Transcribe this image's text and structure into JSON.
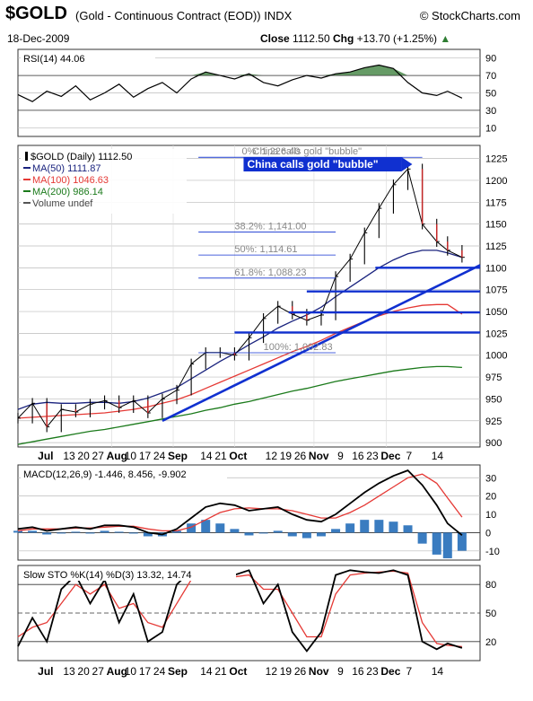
{
  "header": {
    "symbol": "$GOLD",
    "description": "(Gold - Continuous Contract (EOD))  INDX",
    "brand": "© StockCharts.com",
    "date": "18-Dec-2009",
    "close_label": "Close",
    "close_value": "1112.50",
    "chg_label": "Chg",
    "chg_value": "+13.70 (+1.25%)"
  },
  "colors": {
    "price_line": "#000000",
    "ma50": "#1a237e",
    "ma100": "#e53935",
    "ma200": "#1b7a1b",
    "trendline": "#1030d0",
    "macd_line": "#000000",
    "macd_signal": "#e53935",
    "histogram": "#3a7cc0",
    "rsi_fill": "#4b8a4b",
    "sto_k": "#000000",
    "sto_d": "#e53935"
  },
  "chart_data": [
    {
      "type": "line",
      "title": "RSI(14) 44.06",
      "ylim": [
        0,
        100
      ],
      "ticks": [
        "90",
        "70",
        "50",
        "30",
        "10"
      ],
      "reference_lines": [
        70,
        30
      ],
      "grid": true,
      "x": [
        0,
        4,
        8,
        12,
        16,
        20,
        24,
        28,
        32,
        36,
        40,
        44,
        48,
        52,
        56,
        60,
        64,
        68,
        72,
        76,
        80,
        84,
        88,
        92,
        96,
        100,
        104,
        108,
        112,
        116,
        119,
        123
      ],
      "values": [
        48,
        40,
        52,
        46,
        58,
        42,
        50,
        60,
        45,
        55,
        62,
        50,
        66,
        74,
        70,
        66,
        72,
        62,
        58,
        65,
        70,
        67,
        72,
        74,
        79,
        82,
        78,
        62,
        50,
        47,
        52,
        44
      ]
    },
    {
      "type": "line",
      "title": "$GOLD (Daily) 1112.50",
      "legend": [
        {
          "name": "$GOLD (Daily) 1112.50",
          "color": "#000000"
        },
        {
          "name": "MA(50) 1111.87",
          "color": "#1a237e"
        },
        {
          "name": "MA(100) 1046.63",
          "color": "#e53935"
        },
        {
          "name": "MA(200) 986.14",
          "color": "#1b7a1b"
        },
        {
          "name": "Volume undef",
          "color": "#555555"
        }
      ],
      "ylim": [
        895,
        1240
      ],
      "y_ticks": [
        1225,
        1200,
        1175,
        1150,
        1125,
        1100,
        1075,
        1050,
        1025,
        1000,
        975,
        950,
        925,
        900
      ],
      "x_ticks": [
        "Jul",
        "13",
        "20",
        "27",
        "Aug",
        "10",
        "17",
        "24",
        "Sep",
        "14",
        "21",
        "Oct",
        "12",
        "19",
        "26",
        "Nov",
        "9",
        "16",
        "23",
        "Dec",
        "7",
        "14"
      ],
      "x": [
        0,
        4,
        8,
        12,
        16,
        20,
        24,
        28,
        32,
        36,
        40,
        44,
        48,
        52,
        56,
        60,
        64,
        68,
        72,
        76,
        80,
        84,
        88,
        92,
        96,
        100,
        104,
        108,
        112,
        116,
        119,
        123
      ],
      "series": [
        {
          "name": "$GOLD",
          "values": [
            928,
            945,
            918,
            938,
            935,
            944,
            948,
            940,
            948,
            934,
            950,
            960,
            990,
            1003,
            1003,
            1000,
            1020,
            1042,
            1056,
            1047,
            1040,
            1046,
            1090,
            1110,
            1140,
            1168,
            1195,
            1213,
            1150,
            1130,
            1120,
            1112
          ]
        },
        {
          "name": "MA(50)",
          "values": [
            938,
            944,
            946,
            945,
            945,
            946,
            946,
            945,
            947,
            951,
            957,
            963,
            973,
            983,
            993,
            1002,
            1012,
            1021,
            1031,
            1039,
            1046,
            1055,
            1067,
            1078,
            1089,
            1100,
            1109,
            1116,
            1120,
            1120,
            1117,
            1112
          ]
        },
        {
          "name": "MA(100)",
          "values": [
            928,
            929,
            930,
            931,
            932,
            933,
            934,
            936,
            938,
            941,
            945,
            949,
            955,
            962,
            969,
            976,
            983,
            990,
            997,
            1004,
            1010,
            1017,
            1025,
            1032,
            1039,
            1045,
            1050,
            1054,
            1057,
            1058,
            1058,
            1047
          ]
        },
        {
          "name": "MA(200)",
          "values": [
            898,
            901,
            904,
            907,
            910,
            913,
            915,
            918,
            921,
            924,
            927,
            930,
            933,
            937,
            940,
            944,
            947,
            951,
            955,
            959,
            962,
            966,
            970,
            973,
            976,
            979,
            982,
            984,
            986,
            987,
            987,
            986
          ]
        }
      ],
      "annotations": [
        {
          "text": "China calls gold \"bubble\"",
          "at_x": 113,
          "at_y": 1224
        },
        {
          "text": "0%: 1,226.40",
          "value": 1226.4
        },
        {
          "text": "38.2%: 1,141.00",
          "value": 1141.0
        },
        {
          "text": "50%: 1,114.61",
          "value": 1114.61
        },
        {
          "text": "61.8%: 1,088.23",
          "value": 1088.23
        },
        {
          "text": "100%: 1,002.83",
          "value": 1002.83
        }
      ],
      "horizontal_lines": [
        {
          "value": 1100,
          "x_from": 99,
          "x_to": 128
        },
        {
          "value": 1073,
          "x_from": 80,
          "x_to": 128
        },
        {
          "value": 1049,
          "x_from": 75,
          "x_to": 128
        },
        {
          "value": 1026,
          "x_from": 60,
          "x_to": 128
        }
      ],
      "trendline": {
        "from": [
          40,
          925
        ],
        "to": [
          128,
          1103
        ]
      }
    },
    {
      "type": "line",
      "title": "MACD(12,26,9) -1.446, 8.456, -9.902",
      "ylim": [
        -15,
        37
      ],
      "y_ticks": [
        30,
        20,
        10,
        0,
        -10
      ],
      "x": [
        0,
        4,
        8,
        12,
        16,
        20,
        24,
        28,
        32,
        36,
        40,
        44,
        48,
        52,
        56,
        60,
        64,
        68,
        72,
        76,
        80,
        84,
        88,
        92,
        96,
        100,
        104,
        108,
        112,
        116,
        119,
        123
      ],
      "series": [
        {
          "name": "MACD",
          "values": [
            2,
            3,
            1,
            2,
            3,
            2,
            4,
            4,
            3,
            0,
            -1,
            2,
            8,
            14,
            16,
            15,
            12,
            13,
            14,
            10,
            7,
            6,
            10,
            16,
            22,
            27,
            31,
            34,
            26,
            15,
            5,
            -1.4
          ]
        },
        {
          "name": "Signal",
          "values": [
            1,
            2,
            2,
            2,
            2.5,
            2.5,
            3,
            3.5,
            3.5,
            2,
            1,
            1,
            3,
            7,
            11,
            13,
            13.5,
            13,
            13,
            12,
            10,
            8,
            8,
            11,
            15,
            20,
            25,
            30,
            32,
            27,
            19,
            8.5
          ]
        },
        {
          "name": "Histogram",
          "values": [
            1,
            1,
            -1,
            0,
            0.5,
            -0.5,
            1,
            0.5,
            -0.5,
            -2,
            -2,
            1,
            5,
            7,
            5,
            2,
            -1.5,
            0,
            1,
            -2,
            -3,
            -2,
            2,
            5,
            7,
            7,
            6,
            4,
            -6,
            -12,
            -14,
            -9.9
          ]
        }
      ]
    },
    {
      "type": "line",
      "title": "Slow STO %K(14) %D(3) 13.32, 14.74",
      "ylim": [
        0,
        100
      ],
      "y_ticks": [
        80,
        50,
        20
      ],
      "x": [
        0,
        4,
        8,
        12,
        16,
        20,
        24,
        28,
        32,
        36,
        40,
        44,
        48,
        52,
        56,
        60,
        64,
        68,
        72,
        76,
        80,
        84,
        88,
        92,
        96,
        100,
        104,
        108,
        112,
        116,
        119,
        123
      ],
      "series": [
        {
          "name": "%K",
          "values": [
            15,
            45,
            20,
            75,
            90,
            60,
            85,
            40,
            70,
            20,
            30,
            80,
            95,
            92,
            85,
            90,
            95,
            60,
            80,
            30,
            10,
            30,
            90,
            95,
            93,
            92,
            95,
            90,
            20,
            12,
            18,
            13.3
          ]
        },
        {
          "name": "%D",
          "values": [
            25,
            35,
            40,
            60,
            80,
            70,
            80,
            55,
            60,
            40,
            35,
            60,
            85,
            90,
            88,
            88,
            90,
            75,
            75,
            50,
            25,
            25,
            70,
            90,
            92,
            93,
            94,
            92,
            40,
            18,
            16,
            14.7
          ]
        }
      ]
    }
  ]
}
